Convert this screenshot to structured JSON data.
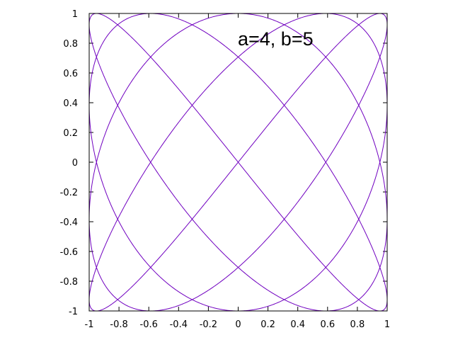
{
  "chart_data": {
    "type": "line",
    "annotation": "a=4, b=5",
    "series": [
      {
        "curve": "lissajous",
        "x_expression": "sin(4*t)",
        "y_expression": "cos(5*t)",
        "a": 4,
        "b": 5,
        "t_range": [
          0,
          6.283185307
        ],
        "color": "#7000c0"
      }
    ],
    "xlim": [
      -1,
      1
    ],
    "ylim": [
      -1,
      1
    ],
    "xticks": [
      "-1",
      "-0.8",
      "-0.6",
      "-0.4",
      "-0.2",
      "0",
      "0.2",
      "0.4",
      "0.6",
      "0.8",
      "1"
    ],
    "yticks": [
      "1",
      "0.8",
      "0.6",
      "0.4",
      "0.2",
      "0",
      "-0.2",
      "-0.4",
      "-0.6",
      "-0.8",
      "-1"
    ],
    "grid": false,
    "border_color": "#000000"
  }
}
